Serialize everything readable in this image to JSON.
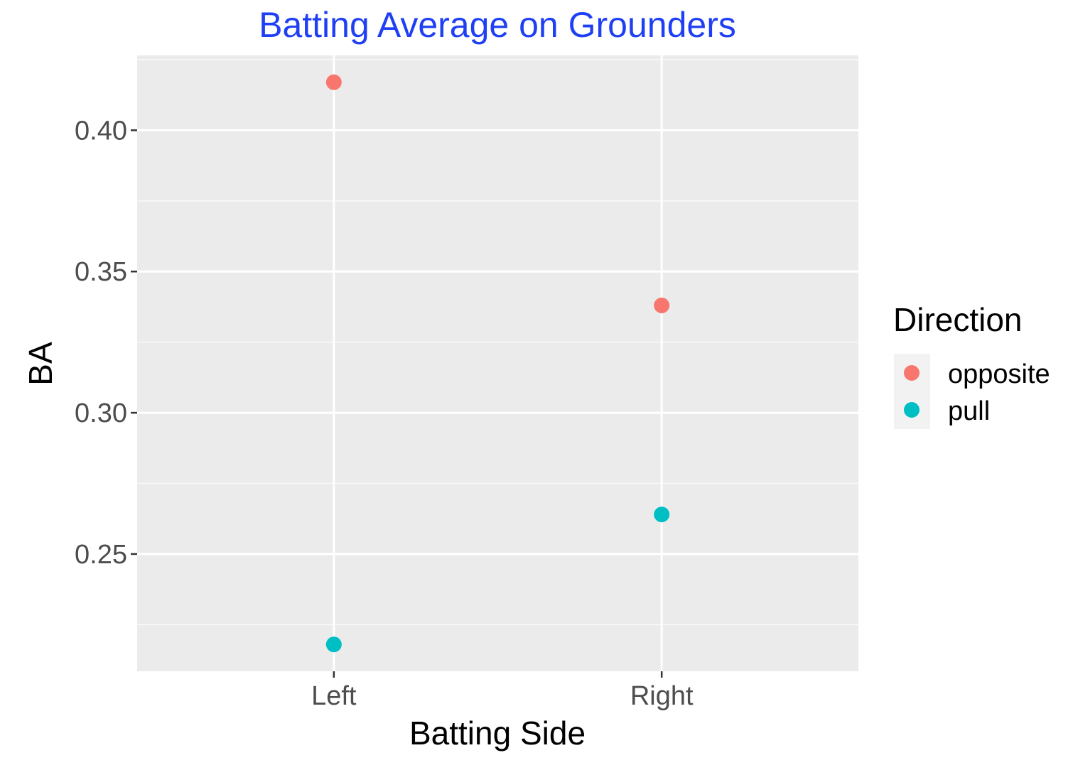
{
  "chart_data": {
    "type": "scatter",
    "title": "Batting Average on Grounders",
    "xlabel": "Batting Side",
    "ylabel": "BA",
    "categories": [
      "Left",
      "Right"
    ],
    "ylim": [
      0.2085,
      0.4265
    ],
    "yticks": [
      0.25,
      0.3,
      0.35,
      0.4
    ],
    "ytick_labels": [
      "0.25",
      "0.30",
      "0.35",
      "0.40"
    ],
    "grid": true,
    "legend": {
      "title": "Direction",
      "position": "right"
    },
    "series": [
      {
        "name": "opposite",
        "color": "#f8766d",
        "values": [
          0.417,
          0.338
        ]
      },
      {
        "name": "pull",
        "color": "#00bfc4",
        "values": [
          0.218,
          0.264
        ]
      }
    ]
  }
}
